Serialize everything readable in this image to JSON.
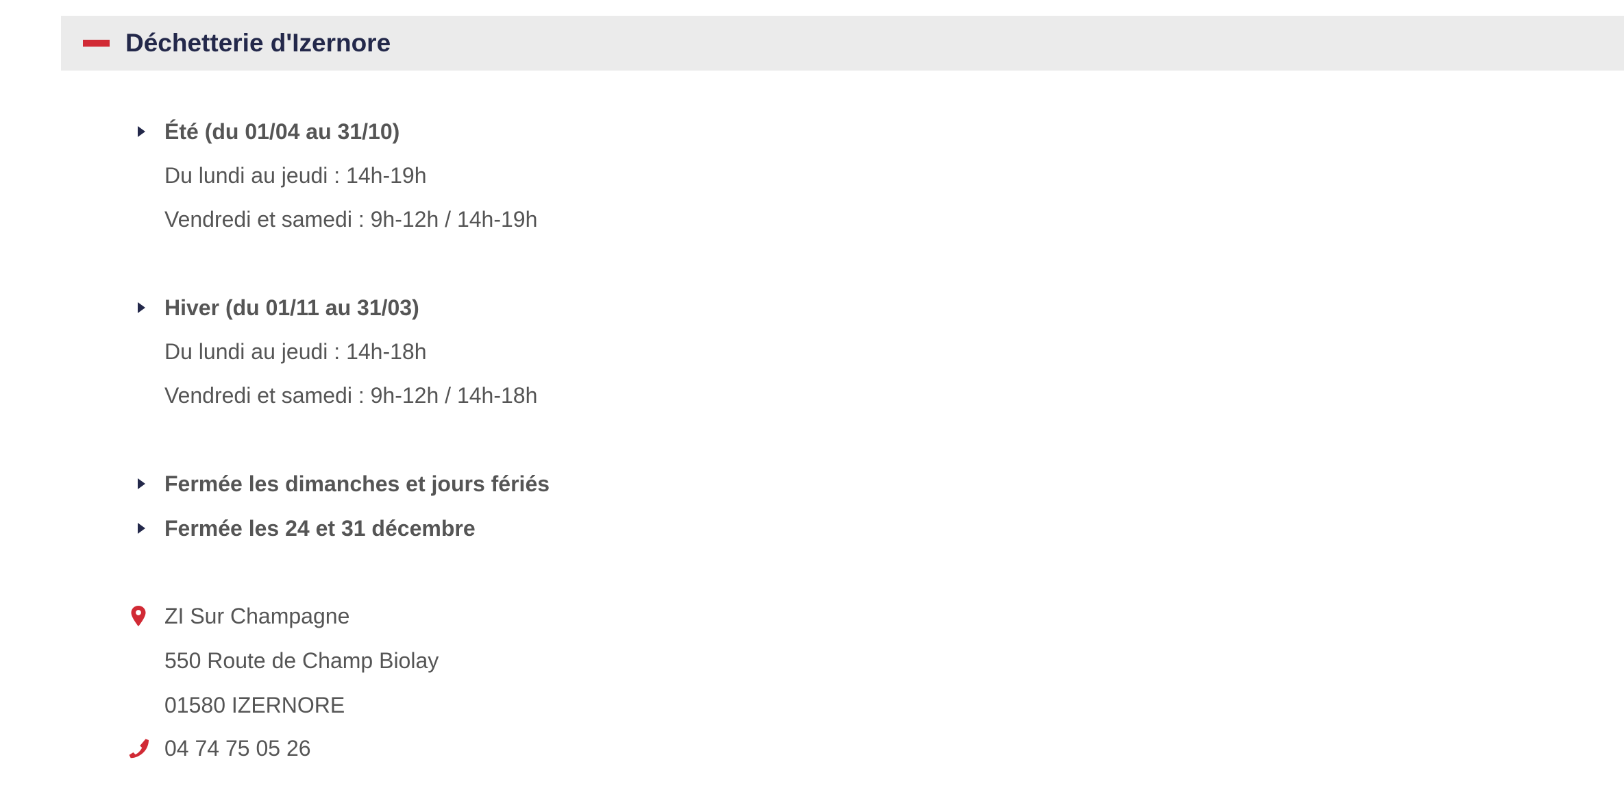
{
  "section": {
    "title": "Déchetterie d'Izernore",
    "toggle_icon": "minus-icon",
    "accent_color": "#d12a35",
    "title_color": "#23284a"
  },
  "schedules": [
    {
      "heading": "Été (du 01/04 au 31/10)",
      "lines": [
        "Du lundi au jeudi : 14h-19h",
        "Vendredi et samedi : 9h-12h / 14h-19h"
      ]
    },
    {
      "heading": "Hiver (du 01/11 au 31/03)",
      "lines": [
        "Du lundi au jeudi : 14h-18h",
        "Vendredi et samedi : 9h-12h / 14h-18h"
      ]
    }
  ],
  "closures": [
    "Fermée les dimanches et jours fériés",
    "Fermée les 24 et 31 décembre"
  ],
  "address": {
    "icon": "map-pin-icon",
    "lines": [
      "ZI Sur Champagne",
      "550 Route de Champ Biolay",
      "01580 IZERNORE"
    ]
  },
  "phone": {
    "icon": "phone-icon",
    "number": "04 74 75 05 26"
  }
}
